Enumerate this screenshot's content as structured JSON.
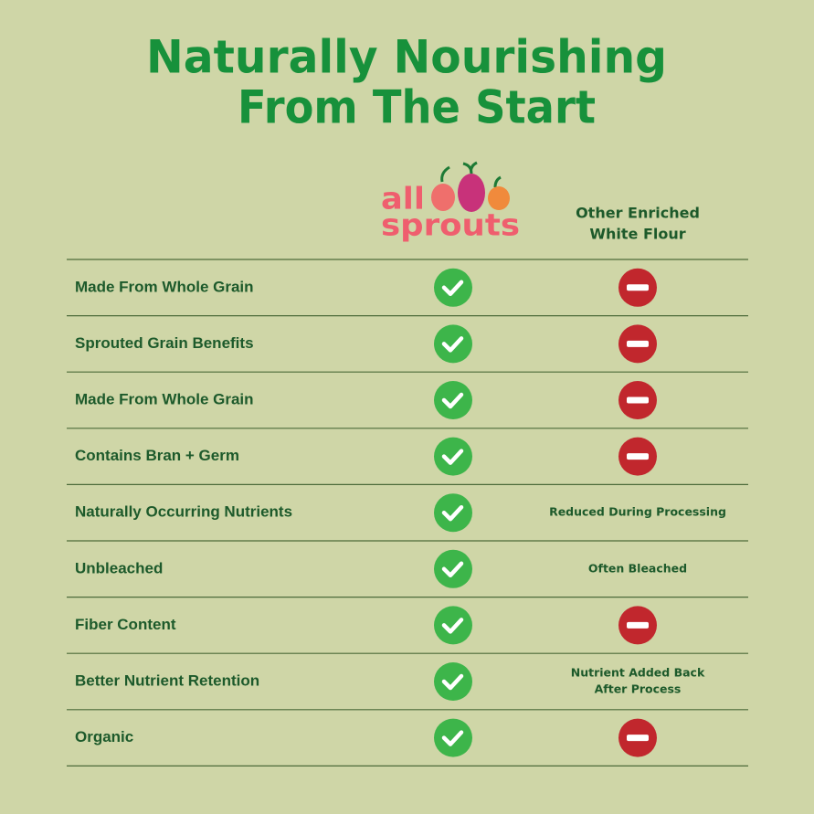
{
  "header": {
    "title": [
      "Naturally Nourishing",
      "From The Start"
    ],
    "logo": [
      "all",
      "sprouts"
    ],
    "other_header": [
      "Other Enriched",
      "White Flour"
    ]
  },
  "table": {
    "rows": [
      {
        "feature": "Made From Whole Grain"
      },
      {
        "feature": "Sprouted Grain Benefits"
      },
      {
        "feature": "Made From Whole Grain"
      },
      {
        "feature": "Contains Bran + Germ"
      },
      {
        "feature": "Naturally Occurring Nutrients",
        "other_note": [
          "Reduced During Processing"
        ]
      },
      {
        "feature": "Unbleached",
        "other_note": [
          "Often Bleached"
        ]
      },
      {
        "feature": "Fiber Content"
      },
      {
        "feature": "Better Nutrient Retention",
        "other_note": [
          "Nutrient Added Back",
          "After Process"
        ]
      },
      {
        "feature": "Organic"
      }
    ]
  }
}
